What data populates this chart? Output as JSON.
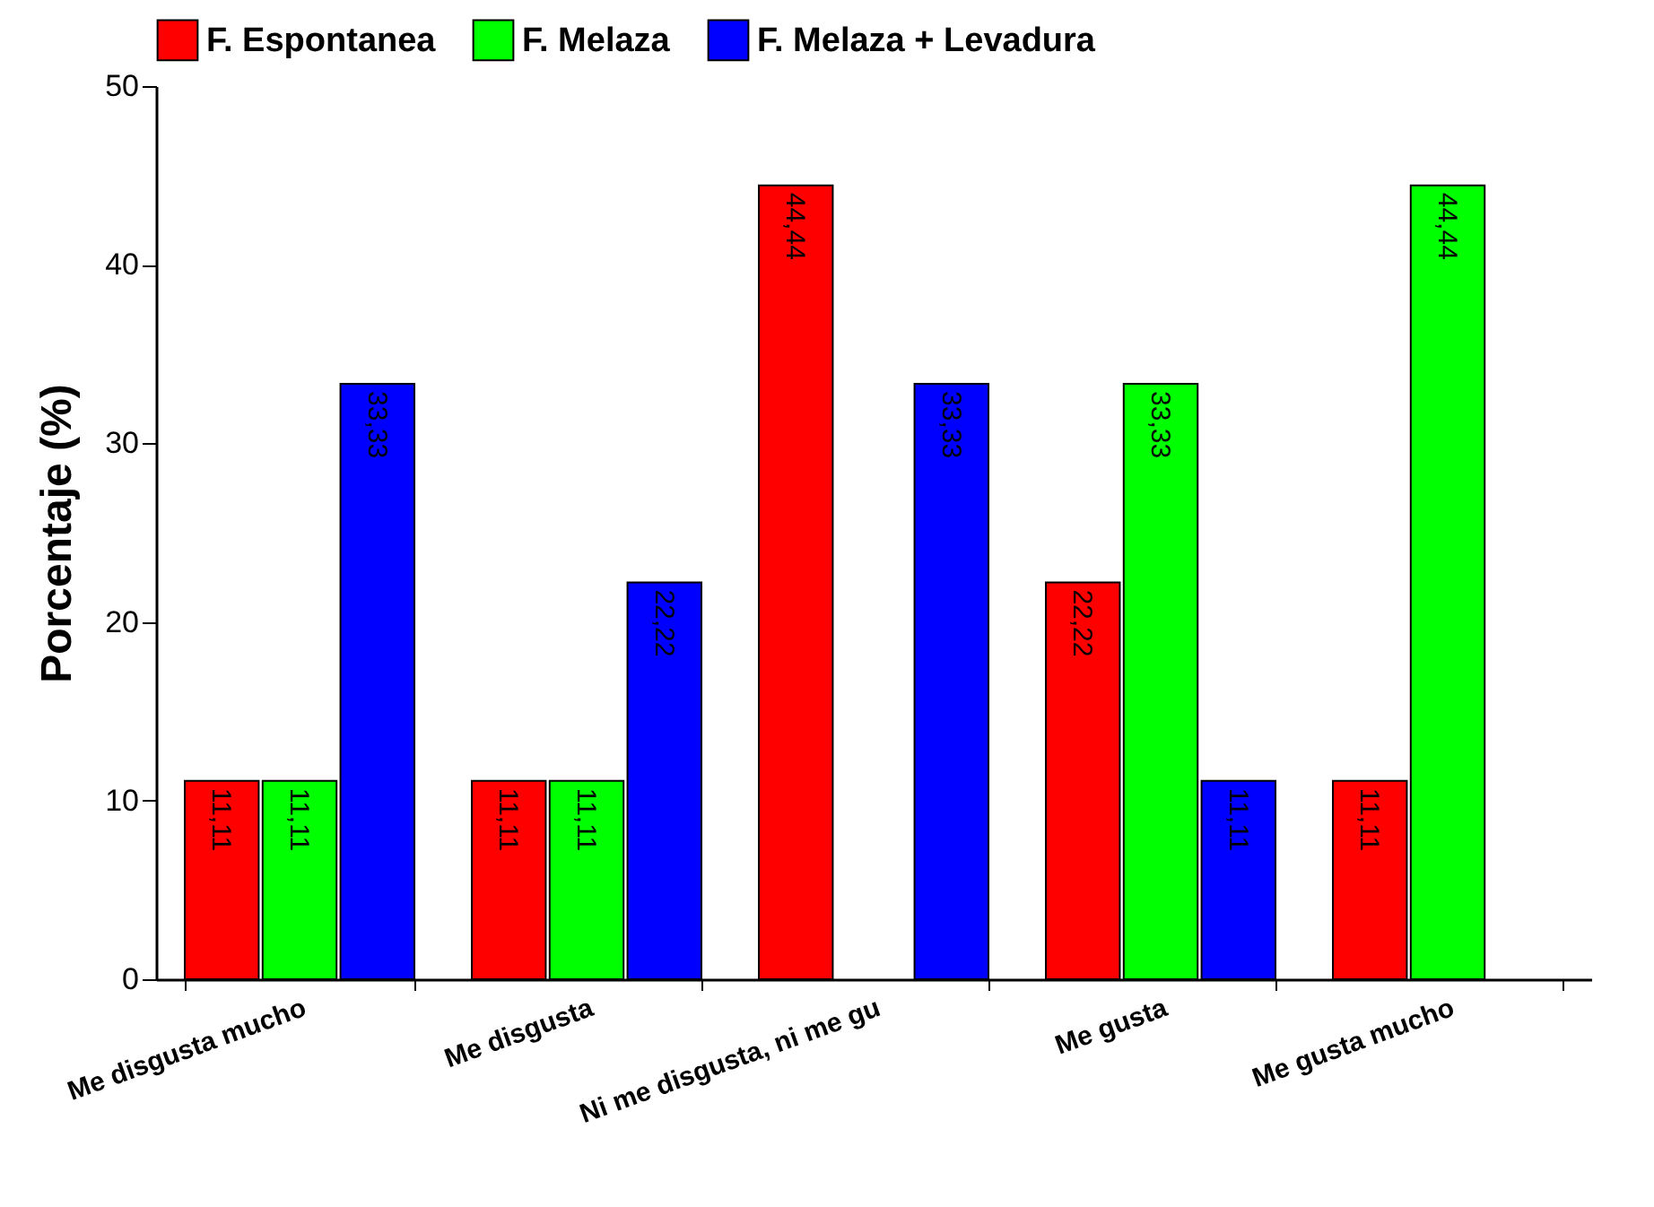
{
  "chart_data": {
    "type": "bar",
    "ylabel": "Porcentaje (%)",
    "categories": [
      "Me disgusta mucho",
      "Me disgusta",
      "Ni me disgusta, ni me gu",
      "Me gusta",
      "Me gusta mucho"
    ],
    "series": [
      {
        "name": "F. Espontanea",
        "color": "#ff0000",
        "values": [
          11.11,
          11.11,
          44.44,
          22.22,
          11.11
        ],
        "value_labels": [
          "11,11",
          "11,11",
          "44,44",
          "22,22",
          "11,11"
        ]
      },
      {
        "name": "F. Melaza",
        "color": "#00ff00",
        "values": [
          11.11,
          11.11,
          null,
          33.33,
          44.44
        ],
        "value_labels": [
          "11,11",
          "11,11",
          null,
          "33,33",
          "44,44"
        ]
      },
      {
        "name": "F. Melaza + Levadura",
        "color": "#0000ff",
        "values": [
          33.33,
          22.22,
          33.33,
          11.11,
          null
        ],
        "value_labels": [
          "33,33",
          "22,22",
          "33,33",
          "11,11",
          null
        ]
      }
    ],
    "ylim": [
      0,
      50
    ],
    "yticks": [
      0,
      10,
      20,
      30,
      40,
      50
    ],
    "grid": false,
    "legend": "top"
  }
}
